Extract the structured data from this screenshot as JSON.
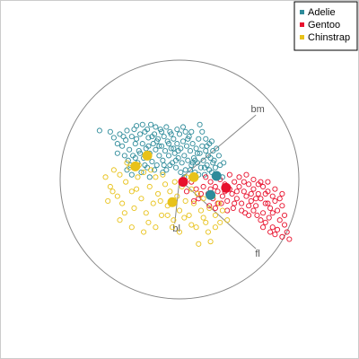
{
  "chart_data": {
    "type": "scatter",
    "title": "",
    "xlabel": "",
    "ylabel": "",
    "xlim": [
      -1,
      1
    ],
    "ylim": [
      -1,
      1
    ],
    "grid": false,
    "legend_position": "top-right",
    "boundary": "unit-circle",
    "axes": [
      {
        "label": "bm",
        "end": [
          0.64,
          0.54
        ]
      },
      {
        "label": "bl",
        "end": [
          -0.04,
          -0.37
        ]
      },
      {
        "label": "fl",
        "end": [
          0.64,
          -0.58
        ]
      }
    ],
    "series": [
      {
        "name": "Adelie",
        "color": "#2E8B9A",
        "centroid": [
          0.31,
          0.03
        ],
        "centroid2": [
          0.26,
          -0.13
        ],
        "points": [
          [
            -0.67,
            0.41
          ],
          [
            -0.58,
            0.4
          ],
          [
            -0.55,
            0.35
          ],
          [
            -0.52,
            0.3
          ],
          [
            -0.5,
            0.38
          ],
          [
            -0.48,
            0.28
          ],
          [
            -0.45,
            0.33
          ],
          [
            -0.44,
            0.41
          ],
          [
            -0.42,
            0.25
          ],
          [
            -0.4,
            0.36
          ],
          [
            -0.39,
            0.2
          ],
          [
            -0.37,
            0.3
          ],
          [
            -0.36,
            0.45
          ],
          [
            -0.35,
            0.14
          ],
          [
            -0.34,
            0.24
          ],
          [
            -0.33,
            0.38
          ],
          [
            -0.31,
            0.3
          ],
          [
            -0.3,
            0.18
          ],
          [
            -0.29,
            0.4
          ],
          [
            -0.28,
            0.26
          ],
          [
            -0.27,
            0.1
          ],
          [
            -0.26,
            0.35
          ],
          [
            -0.25,
            0.22
          ],
          [
            -0.24,
            0.46
          ],
          [
            -0.23,
            0.15
          ],
          [
            -0.22,
            0.3
          ],
          [
            -0.21,
            0.38
          ],
          [
            -0.2,
            0.25
          ],
          [
            -0.19,
            0.12
          ],
          [
            -0.18,
            0.34
          ],
          [
            -0.17,
            0.2
          ],
          [
            -0.16,
            0.42
          ],
          [
            -0.15,
            0.28
          ],
          [
            -0.14,
            0.16
          ],
          [
            -0.13,
            0.36
          ],
          [
            -0.12,
            0.24
          ],
          [
            -0.11,
            0.08
          ],
          [
            -0.1,
            0.32
          ],
          [
            -0.09,
            0.2
          ],
          [
            -0.08,
            0.4
          ],
          [
            -0.07,
            0.26
          ],
          [
            -0.06,
            0.14
          ],
          [
            -0.05,
            0.34
          ],
          [
            -0.04,
            0.22
          ],
          [
            -0.03,
            0.1
          ],
          [
            -0.02,
            0.3
          ],
          [
            -0.01,
            0.18
          ],
          [
            0.0,
            0.38
          ],
          [
            0.01,
            0.26
          ],
          [
            0.02,
            0.14
          ],
          [
            0.03,
            0.32
          ],
          [
            0.04,
            0.2
          ],
          [
            0.05,
            0.08
          ],
          [
            0.06,
            0.28
          ],
          [
            0.07,
            0.16
          ],
          [
            0.08,
            0.36
          ],
          [
            0.09,
            0.24
          ],
          [
            0.1,
            0.12
          ],
          [
            0.11,
            0.3
          ],
          [
            0.12,
            0.18
          ],
          [
            0.13,
            0.06
          ],
          [
            0.14,
            0.26
          ],
          [
            0.15,
            0.14
          ],
          [
            0.16,
            0.34
          ],
          [
            0.17,
            0.22
          ],
          [
            0.18,
            0.1
          ],
          [
            0.19,
            0.28
          ],
          [
            0.2,
            0.16
          ],
          [
            0.21,
            0.04
          ],
          [
            0.22,
            0.24
          ],
          [
            0.23,
            0.12
          ],
          [
            0.24,
            0.2
          ],
          [
            0.25,
            0.08
          ],
          [
            0.26,
            0.18
          ],
          [
            0.27,
            0.06
          ],
          [
            0.28,
            0.14
          ],
          [
            0.3,
            0.1
          ],
          [
            0.32,
            0.04
          ],
          [
            0.34,
            0.12
          ],
          [
            0.36,
            0.02
          ],
          [
            -0.46,
            0.2
          ],
          [
            -0.41,
            0.12
          ],
          [
            -0.38,
            0.42
          ],
          [
            -0.32,
            0.06
          ],
          [
            -0.26,
            0.28
          ],
          [
            -0.2,
            0.44
          ],
          [
            -0.14,
            0.06
          ],
          [
            -0.08,
            0.12
          ],
          [
            -0.02,
            0.42
          ],
          [
            0.04,
            0.02
          ],
          [
            0.1,
            0.4
          ],
          [
            0.16,
            0.04
          ],
          [
            0.22,
            0.34
          ],
          [
            0.28,
            0.24
          ],
          [
            -0.52,
            0.22
          ],
          [
            -0.47,
            0.36
          ],
          [
            -0.43,
            0.16
          ],
          [
            -0.36,
            0.34
          ],
          [
            -0.29,
            0.12
          ],
          [
            -0.23,
            0.36
          ],
          [
            -0.17,
            0.28
          ],
          [
            -0.11,
            0.44
          ],
          [
            -0.05,
            0.26
          ],
          [
            0.01,
            0.06
          ],
          [
            0.07,
            0.34
          ],
          [
            0.13,
            0.16
          ],
          [
            0.19,
            0.4
          ],
          [
            0.25,
            0.3
          ],
          [
            -0.4,
            0.04
          ],
          [
            -0.33,
            0.22
          ],
          [
            -0.27,
            0.42
          ],
          [
            -0.21,
            0.08
          ],
          [
            -0.15,
            0.4
          ],
          [
            -0.09,
            0.3
          ],
          [
            -0.03,
            0.16
          ],
          [
            0.03,
            0.44
          ],
          [
            0.09,
            0.08
          ],
          [
            0.15,
            0.22
          ],
          [
            0.21,
            0.1
          ],
          [
            0.27,
            0.32
          ],
          [
            -0.44,
            0.08
          ],
          [
            -0.37,
            0.18
          ],
          [
            -0.31,
            0.46
          ],
          [
            -0.25,
            0.02
          ],
          [
            -0.19,
            0.32
          ],
          [
            -0.13,
            0.12
          ],
          [
            -0.07,
            0.38
          ],
          [
            -0.01,
            0.24
          ],
          [
            0.05,
            0.4
          ],
          [
            0.11,
            0.14
          ],
          [
            0.17,
            0.46
          ],
          [
            0.23,
            0.28
          ],
          [
            0.29,
            0.16
          ],
          [
            0.33,
            0.2
          ],
          [
            0.37,
            0.14
          ],
          [
            0.31,
            0.26
          ]
        ]
      },
      {
        "name": "Gentoo",
        "color": "#E8112D",
        "centroid": [
          0.03,
          -0.02
        ],
        "centroid2": [
          0.39,
          -0.07
        ],
        "points": [
          [
            0.22,
            0.02
          ],
          [
            0.26,
            -0.02
          ],
          [
            0.3,
            -0.06
          ],
          [
            0.34,
            0.0
          ],
          [
            0.38,
            -0.04
          ],
          [
            0.42,
            -0.08
          ],
          [
            0.46,
            -0.02
          ],
          [
            0.5,
            -0.06
          ],
          [
            0.54,
            -0.1
          ],
          [
            0.58,
            -0.04
          ],
          [
            0.62,
            -0.08
          ],
          [
            0.66,
            -0.12
          ],
          [
            0.7,
            -0.06
          ],
          [
            0.74,
            -0.1
          ],
          [
            0.78,
            -0.14
          ],
          [
            0.24,
            -0.12
          ],
          [
            0.28,
            -0.16
          ],
          [
            0.32,
            -0.1
          ],
          [
            0.36,
            -0.14
          ],
          [
            0.4,
            -0.18
          ],
          [
            0.44,
            -0.12
          ],
          [
            0.48,
            -0.16
          ],
          [
            0.52,
            -0.2
          ],
          [
            0.56,
            -0.14
          ],
          [
            0.6,
            -0.18
          ],
          [
            0.64,
            -0.22
          ],
          [
            0.68,
            -0.16
          ],
          [
            0.72,
            -0.2
          ],
          [
            0.76,
            -0.24
          ],
          [
            0.8,
            -0.18
          ],
          [
            0.2,
            -0.06
          ],
          [
            0.25,
            -0.22
          ],
          [
            0.35,
            -0.2
          ],
          [
            0.45,
            -0.24
          ],
          [
            0.55,
            -0.28
          ],
          [
            0.65,
            -0.3
          ],
          [
            0.75,
            -0.32
          ],
          [
            0.82,
            -0.26
          ],
          [
            0.86,
            -0.22
          ],
          [
            0.84,
            -0.34
          ],
          [
            0.78,
            -0.4
          ],
          [
            0.72,
            -0.36
          ],
          [
            0.62,
            -0.26
          ],
          [
            0.58,
            -0.22
          ],
          [
            0.5,
            0.02
          ],
          [
            0.56,
            0.04
          ],
          [
            0.62,
            0.0
          ],
          [
            0.68,
            -0.02
          ],
          [
            0.74,
            -0.02
          ],
          [
            0.8,
            -0.08
          ],
          [
            0.86,
            -0.12
          ],
          [
            0.88,
            -0.3
          ],
          [
            0.82,
            -0.42
          ],
          [
            0.76,
            -0.44
          ],
          [
            0.7,
            -0.28
          ],
          [
            0.4,
            -0.26
          ],
          [
            0.3,
            -0.24
          ],
          [
            0.14,
            -0.08
          ],
          [
            0.1,
            -0.02
          ],
          [
            0.06,
            -0.1
          ],
          [
            0.16,
            -0.16
          ],
          [
            0.42,
            0.04
          ],
          [
            0.48,
            -0.1
          ],
          [
            0.54,
            -0.02
          ],
          [
            0.6,
            -0.12
          ],
          [
            0.66,
            -0.04
          ],
          [
            0.72,
            -0.12
          ],
          [
            0.78,
            -0.28
          ],
          [
            0.84,
            -0.16
          ],
          [
            0.88,
            -0.38
          ],
          [
            0.9,
            -0.44
          ],
          [
            0.86,
            -0.48
          ],
          [
            0.8,
            -0.46
          ],
          [
            0.74,
            -0.2
          ],
          [
            0.68,
            -0.34
          ],
          [
            0.64,
            -0.16
          ],
          [
            0.52,
            -0.26
          ],
          [
            0.46,
            -0.2
          ],
          [
            0.38,
            -0.1
          ],
          [
            0.32,
            -0.2
          ],
          [
            0.26,
            -0.08
          ],
          [
            0.18,
            -0.12
          ],
          [
            0.12,
            -0.18
          ],
          [
            0.58,
            -0.3
          ],
          [
            0.7,
            -0.4
          ],
          [
            0.92,
            -0.5
          ]
        ]
      },
      {
        "name": "Chinstrap",
        "color": "#E8C21A",
        "centroid": [
          -0.37,
          0.11
        ],
        "centroid2": [
          -0.27,
          0.2
        ],
        "centroid3": [
          -0.06,
          -0.19
        ],
        "centroid4": [
          0.12,
          0.02
        ],
        "points": [
          [
            -0.62,
            0.02
          ],
          [
            -0.58,
            -0.06
          ],
          [
            -0.55,
            0.08
          ],
          [
            -0.52,
            -0.14
          ],
          [
            -0.5,
            0.04
          ],
          [
            -0.48,
            -0.2
          ],
          [
            -0.45,
            -0.02
          ],
          [
            -0.42,
            0.1
          ],
          [
            -0.4,
            -0.1
          ],
          [
            -0.38,
            -0.24
          ],
          [
            -0.35,
            0.02
          ],
          [
            -0.32,
            -0.16
          ],
          [
            -0.3,
            0.06
          ],
          [
            -0.28,
            -0.28
          ],
          [
            -0.25,
            -0.06
          ],
          [
            -0.22,
            -0.2
          ],
          [
            -0.2,
            0.02
          ],
          [
            -0.18,
            -0.12
          ],
          [
            -0.15,
            -0.3
          ],
          [
            -0.12,
            -0.04
          ],
          [
            -0.1,
            -0.22
          ],
          [
            -0.08,
            -0.1
          ],
          [
            -0.05,
            -0.34
          ],
          [
            -0.02,
            -0.14
          ],
          [
            0.0,
            -0.26
          ],
          [
            0.02,
            -0.06
          ],
          [
            0.05,
            -0.18
          ],
          [
            0.08,
            -0.3
          ],
          [
            0.1,
            -0.08
          ],
          [
            0.12,
            -0.2
          ],
          [
            0.15,
            -0.12
          ],
          [
            0.18,
            -0.26
          ],
          [
            0.2,
            -0.16
          ],
          [
            0.22,
            -0.36
          ],
          [
            0.25,
            -0.24
          ],
          [
            0.28,
            -0.14
          ],
          [
            0.3,
            -0.3
          ],
          [
            0.33,
            -0.2
          ],
          [
            0.36,
            -0.26
          ],
          [
            0.4,
            -0.34
          ],
          [
            -0.56,
            -0.1
          ],
          [
            -0.46,
            -0.28
          ],
          [
            -0.36,
            -0.08
          ],
          [
            -0.26,
            -0.36
          ],
          [
            -0.16,
            -0.18
          ],
          [
            -0.06,
            -0.4
          ],
          [
            0.04,
            -0.32
          ],
          [
            0.14,
            -0.4
          ],
          [
            0.24,
            -0.44
          ],
          [
            0.34,
            -0.36
          ],
          [
            -0.44,
            0.14
          ],
          [
            -0.34,
            0.12
          ],
          [
            -0.24,
            0.08
          ],
          [
            -0.14,
            0.04
          ],
          [
            -0.04,
            -0.02
          ],
          [
            0.06,
            0.02
          ],
          [
            -0.6,
            -0.18
          ],
          [
            -0.5,
            -0.34
          ],
          [
            -0.4,
            -0.4
          ],
          [
            -0.3,
            -0.44
          ],
          [
            -0.2,
            -0.4
          ],
          [
            -0.1,
            -0.3
          ],
          [
            0.0,
            -0.44
          ],
          [
            0.1,
            -0.38
          ],
          [
            0.2,
            -0.32
          ],
          [
            0.26,
            -0.52
          ],
          [
            0.16,
            -0.54
          ],
          [
            0.3,
            -0.4
          ]
        ]
      }
    ]
  },
  "colors": {
    "circle": "#888888",
    "axis_line": "#888888"
  }
}
